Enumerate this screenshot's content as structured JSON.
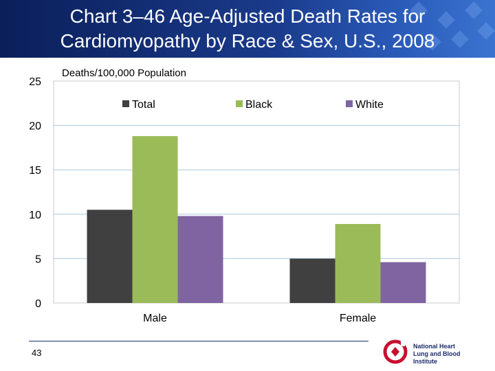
{
  "header": {
    "title_line1": "Chart 3–46 Age-Adjusted Death Rates for",
    "title_line2": "Cardiomyopathy by Race & Sex, U.S., 2008"
  },
  "footer": {
    "page_number": "43",
    "logo_line1": "National Heart",
    "logo_line2": "Lung and Blood Institute"
  },
  "chart_data": {
    "type": "bar",
    "ylabel": "Deaths/100,000 Population",
    "categories": [
      "Male",
      "Female"
    ],
    "series": [
      {
        "name": "Total",
        "values": [
          10.5,
          5.0
        ],
        "color": "#404040"
      },
      {
        "name": "Black",
        "values": [
          18.8,
          8.9
        ],
        "color": "#9bbb59"
      },
      {
        "name": "White",
        "values": [
          9.8,
          4.6
        ],
        "color": "#8064a2"
      }
    ],
    "ylim": [
      0,
      25
    ],
    "yticks": [
      0,
      5,
      10,
      15,
      20,
      25
    ],
    "grid": true,
    "legend_position": "top-inside"
  }
}
